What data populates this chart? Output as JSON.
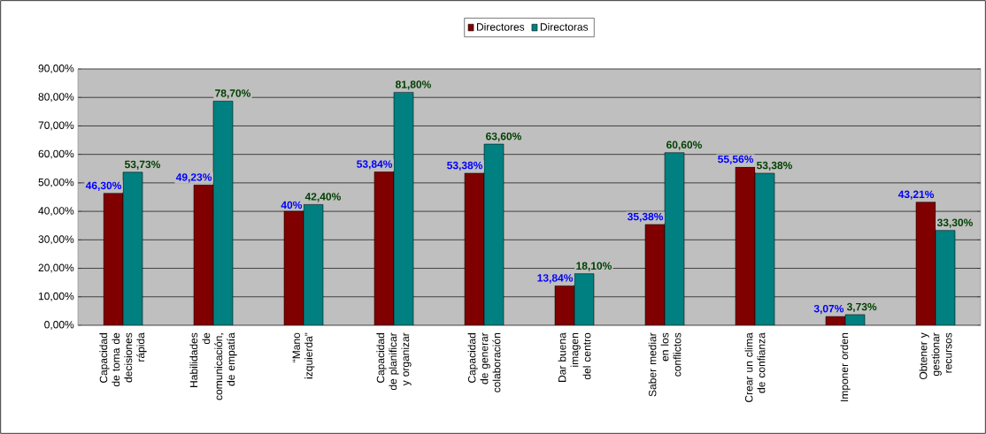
{
  "chart_data": {
    "type": "bar",
    "categories": [
      "Capacidad de toma de decisiones rápida",
      "Habilidades de comunicación, de empatía",
      "“Mano izquierda”",
      "Capacidad de planificar y organizar",
      "Capacidad de generar colaboración",
      "Dar buena imagen del centro",
      "Saber mediar en los conflictos",
      "Crear un clima de confianza",
      "Imponer orden",
      "Obtener y gestionar recursos"
    ],
    "series": [
      {
        "name": "Directores",
        "color": "#800000",
        "values": [
          46.3,
          49.23,
          40,
          53.84,
          53.38,
          13.84,
          35.38,
          55.56,
          3.07,
          43.21
        ],
        "value_labels": [
          "46,30%",
          "49,23%",
          "40%",
          "53,84%",
          "53,38%",
          "13,84%",
          "35,38%",
          "55,56%",
          "3,07%",
          "43,21%"
        ]
      },
      {
        "name": "Directoras",
        "color": "#008080",
        "values": [
          53.73,
          78.7,
          42.4,
          81.8,
          63.6,
          18.1,
          60.6,
          53.38,
          3.73,
          33.3
        ],
        "value_labels": [
          "53,73%",
          "78,70%",
          "42,40%",
          "81,80%",
          "63,60%",
          "18,10%",
          "60,60%",
          "53,38%",
          "3,73%",
          "33,30%"
        ]
      }
    ],
    "ylim": [
      0,
      90
    ],
    "yticks": [
      {
        "value": 0,
        "label": "0,00%"
      },
      {
        "value": 10,
        "label": "10,00%"
      },
      {
        "value": 20,
        "label": "20,00%"
      },
      {
        "value": 30,
        "label": "30,00%"
      },
      {
        "value": 40,
        "label": "40,00%"
      },
      {
        "value": 50,
        "label": "50,00%"
      },
      {
        "value": 60,
        "label": "60,00%"
      },
      {
        "value": 70,
        "label": "70,00%"
      },
      {
        "value": 80,
        "label": "80,00%"
      },
      {
        "value": 90,
        "label": "90,00%"
      }
    ],
    "grid": "y",
    "legend": "top"
  }
}
